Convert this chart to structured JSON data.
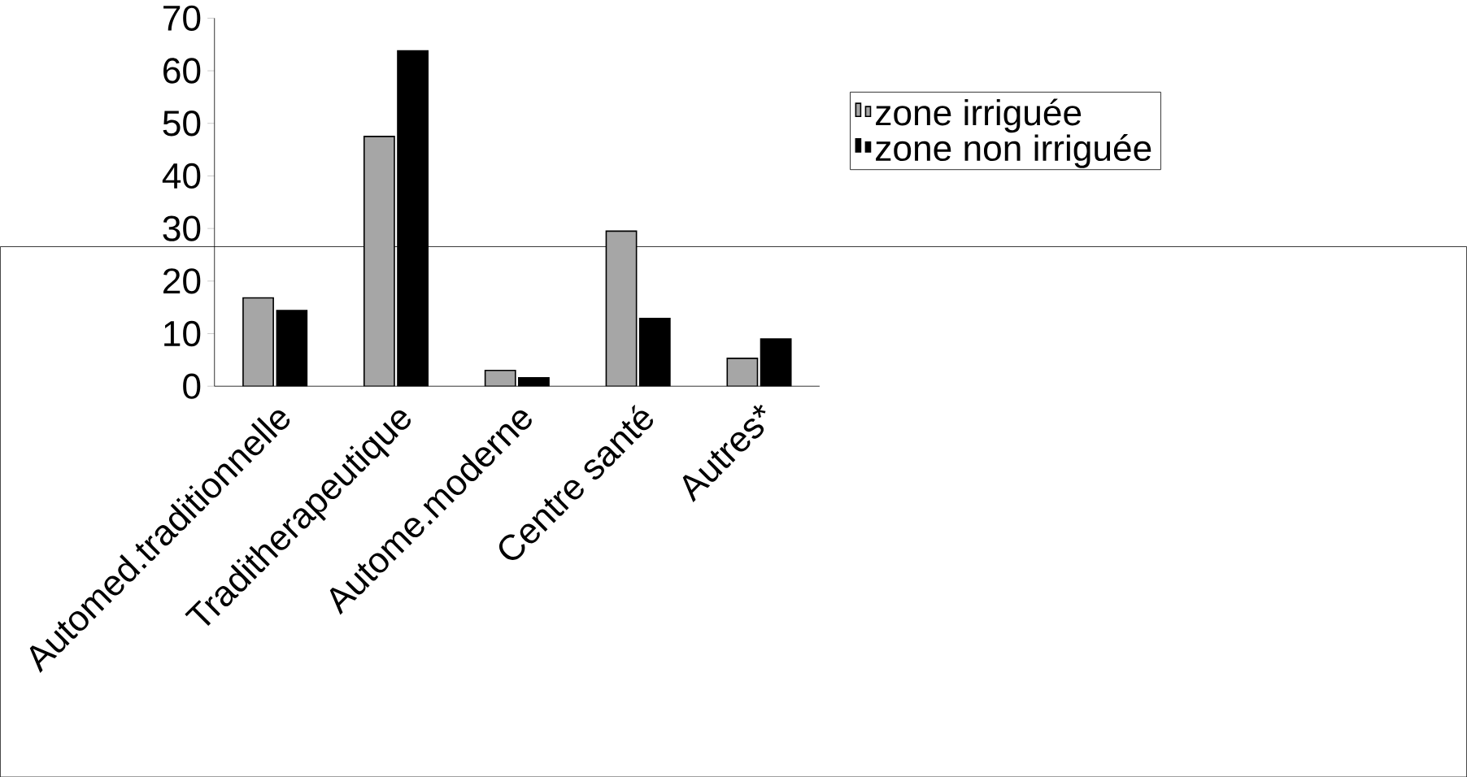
{
  "chart_data": {
    "type": "bar",
    "categories": [
      "Automed.traditionnelle",
      "Traditherapeutique",
      "Autome.moderne",
      "Centre santé",
      "Autres*"
    ],
    "series": [
      {
        "name": "zone irriguée",
        "color": "#a6a6a6",
        "values": [
          16.8,
          47.5,
          3.0,
          29.5,
          5.3
        ]
      },
      {
        "name": "zone non irriguée",
        "color": "#000000",
        "values": [
          14.4,
          63.8,
          1.6,
          12.9,
          9.0
        ]
      }
    ],
    "ylim": [
      0,
      70
    ],
    "yticks": [
      0,
      10,
      20,
      30,
      40,
      50,
      60,
      70
    ],
    "grid": false,
    "legend": "right"
  }
}
